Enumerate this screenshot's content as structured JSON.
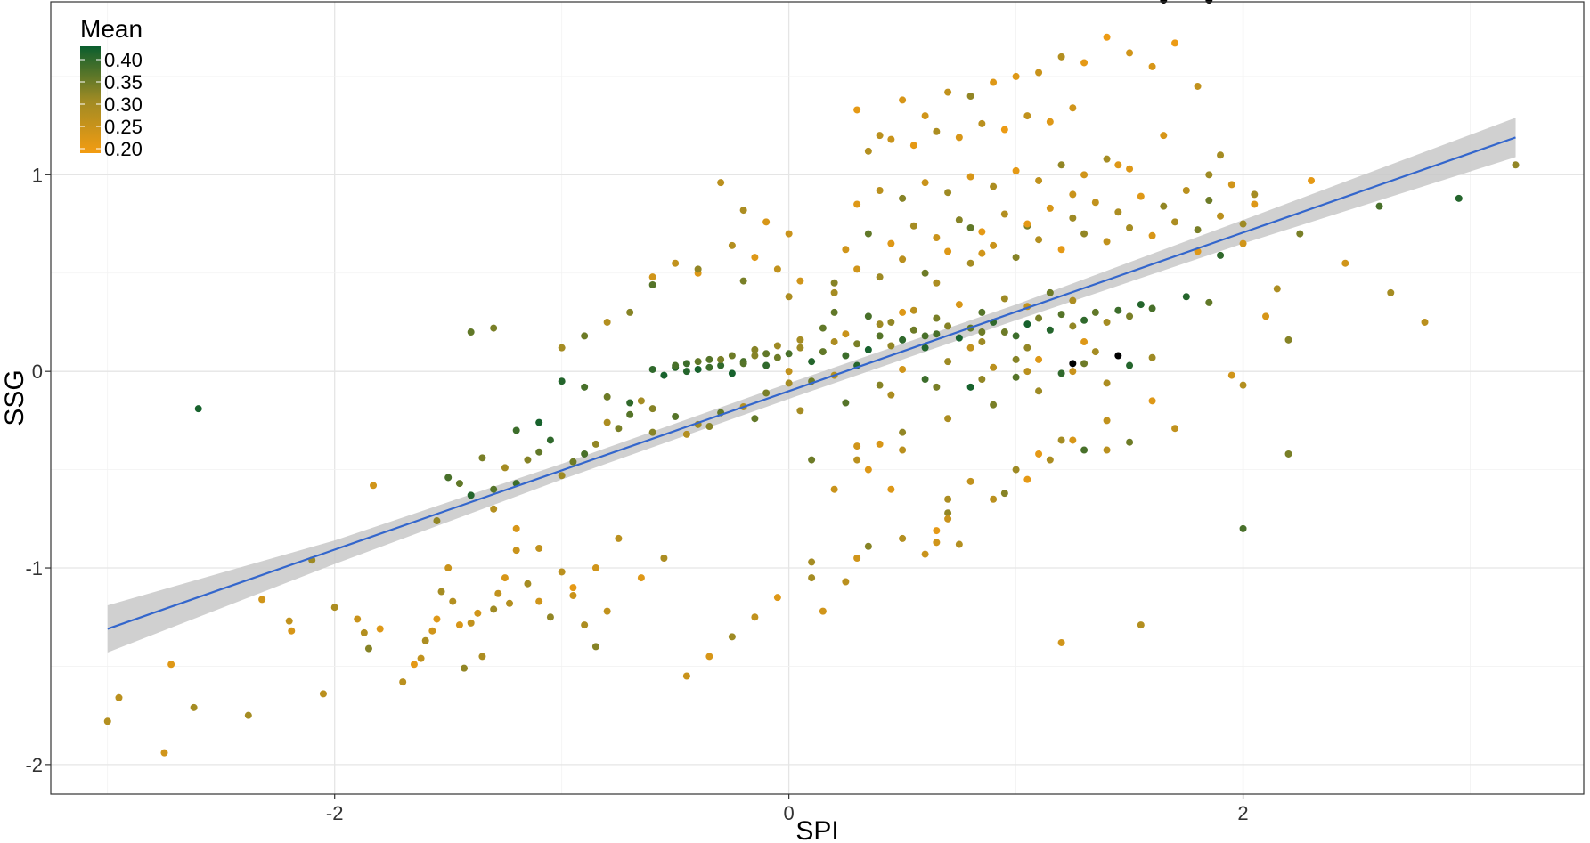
{
  "chart_data": {
    "type": "scatter",
    "xlabel": "SPI",
    "ylabel": "SSG",
    "xlim": [
      -3.25,
      3.5
    ],
    "ylim": [
      -2.15,
      1.88
    ],
    "xticks": [
      -2,
      0,
      2
    ],
    "xtick_labels": [
      "-2",
      "0",
      "2"
    ],
    "yticks": [
      -2,
      -1,
      0,
      1
    ],
    "ytick_labels": [
      "-2",
      "-1",
      "0",
      "1"
    ],
    "grid": true,
    "legend": {
      "title": "Mean",
      "placement": "top-left",
      "ticks": [
        0.4,
        0.35,
        0.3,
        0.25,
        0.2
      ],
      "tick_labels": [
        "0.40",
        "0.35",
        "0.30",
        "0.25",
        "0.20"
      ],
      "range": [
        0.19,
        0.43
      ],
      "colors": [
        "#F39C12",
        "#9E8A24",
        "#0B5E2E"
      ]
    },
    "regression": {
      "x": [
        -3.0,
        3.2
      ],
      "y": [
        -1.31,
        1.19
      ],
      "ci_x": [
        -3.0,
        -2.0,
        -1.0,
        0.0,
        1.0,
        2.0,
        3.2
      ],
      "ci_lower": [
        -1.43,
        -0.98,
        -0.55,
        -0.14,
        0.26,
        0.65,
        1.09
      ],
      "ci_upper": [
        -1.19,
        -0.86,
        -0.47,
        -0.06,
        0.34,
        0.77,
        1.29
      ],
      "line_color": "#3366CC",
      "band_color": "#C8C8C8"
    },
    "points_x": [
      -3.0,
      -2.95,
      -2.75,
      -2.72,
      -2.62,
      -2.6,
      -2.38,
      -2.32,
      -2.2,
      -2.19,
      -2.1,
      -2.05,
      -2.0,
      -1.9,
      -1.87,
      -1.85,
      -1.83,
      -1.8,
      -1.7,
      -1.65,
      -1.62,
      -1.6,
      -1.57,
      -1.55,
      -1.53,
      -1.5,
      -1.48,
      -1.45,
      -1.43,
      -1.4,
      -1.37,
      -1.35,
      -1.3,
      -1.28,
      -1.25,
      -1.23,
      -1.2,
      -1.15,
      -1.1,
      -1.05,
      -1.0,
      -0.95,
      -0.9,
      -0.85,
      -0.8,
      -1.55,
      -1.5,
      -1.45,
      -1.4,
      -1.35,
      -1.3,
      -1.25,
      -1.2,
      -1.15,
      -1.1,
      -1.05,
      -1.0,
      -0.95,
      -0.9,
      -0.85,
      -0.8,
      -0.75,
      -0.7,
      -0.65,
      -0.6,
      -1.4,
      -1.3,
      -1.2,
      -1.1,
      -1.0,
      -0.9,
      -0.8,
      -0.7,
      -0.6,
      -0.5,
      -0.4,
      -0.3,
      -0.2,
      -0.1,
      0.0,
      -0.5,
      -0.45,
      -0.4,
      -0.35,
      -0.3,
      -0.25,
      -0.2,
      -0.15,
      -0.1,
      -0.05,
      -0.6,
      -0.55,
      -0.5,
      -0.45,
      -0.4,
      -0.35,
      -0.3,
      -0.25,
      -0.2,
      -0.15,
      -0.1,
      -0.05,
      0.0,
      0.05,
      0.1,
      0.15,
      0.2,
      0.25,
      0.3,
      0.35,
      0.4,
      0.45,
      0.5,
      0.55,
      0.6,
      0.65,
      0.7,
      0.75,
      0.8,
      0.85,
      0.9,
      0.95,
      1.0,
      1.05,
      1.1,
      1.15,
      1.2,
      1.25,
      1.3,
      1.35,
      1.4,
      1.45,
      1.5,
      1.55,
      1.6,
      0.0,
      0.1,
      0.2,
      0.3,
      0.4,
      0.5,
      0.6,
      0.7,
      0.8,
      0.9,
      1.0,
      1.1,
      1.2,
      1.3,
      1.4,
      1.5,
      0.05,
      0.15,
      0.25,
      0.35,
      0.45,
      0.55,
      0.65,
      0.75,
      0.85,
      0.95,
      1.05,
      1.15,
      1.25,
      0.2,
      0.3,
      0.4,
      0.5,
      0.6,
      0.7,
      0.8,
      0.9,
      1.0,
      1.1,
      1.2,
      1.3,
      1.4,
      1.5,
      1.6,
      1.7,
      1.8,
      1.9,
      2.0,
      0.25,
      0.35,
      0.45,
      0.55,
      0.65,
      0.75,
      0.85,
      0.95,
      1.05,
      1.15,
      1.25,
      1.35,
      1.45,
      1.55,
      1.65,
      1.75,
      1.85,
      1.95,
      2.05,
      0.3,
      0.4,
      0.5,
      0.6,
      0.7,
      0.8,
      0.9,
      1.0,
      1.1,
      1.2,
      1.3,
      1.4,
      1.5,
      0.35,
      0.45,
      0.55,
      0.65,
      0.75,
      0.85,
      0.95,
      1.05,
      1.15,
      1.25,
      0.3,
      0.5,
      0.7,
      0.9,
      1.1,
      1.3,
      1.5,
      1.7,
      1.9,
      0.4,
      0.6,
      0.8,
      1.0,
      1.2,
      1.4,
      1.6,
      1.8,
      0.5,
      0.65,
      0.85,
      1.05,
      1.25,
      1.45,
      1.65,
      1.85,
      2.05,
      2.25,
      2.45,
      2.65,
      2.8,
      3.2,
      2.6,
      2.95,
      2.3,
      2.15,
      2.2,
      1.95,
      2.0,
      2.1,
      1.85,
      1.6,
      1.7,
      1.8,
      2.0,
      2.2,
      2.0,
      1.9,
      1.75,
      0.8,
      0.85,
      1.05,
      1.25,
      1.3,
      1.35,
      1.1,
      0.95,
      0.75,
      1.2,
      1.0,
      0.8,
      0.7,
      0.45,
      0.4,
      0.3,
      0.7,
      0.65,
      0.65,
      0.6,
      0.35,
      0.25,
      0.1,
      0.15,
      1.55,
      1.6,
      1.4,
      1.25,
      1.15,
      1.05,
      0.9,
      0.7,
      0.5,
      0.3,
      0.1,
      -0.05,
      -0.15,
      -0.25,
      -0.35,
      -0.45,
      -0.55,
      -0.65,
      -0.75,
      -0.85,
      -0.95,
      -1.1,
      -1.2,
      -1.3,
      0.2,
      0.35,
      0.5,
      0.2,
      0.05,
      -0.05,
      -0.15,
      -0.25,
      0.0,
      -0.1,
      -0.2,
      -0.3,
      -0.4,
      -0.5,
      -0.6,
      -0.7,
      -0.8,
      -0.9,
      -1.0,
      -0.6,
      -0.4,
      -0.2,
      0.0,
      0.2,
      0.4,
      0.6,
      0.8,
      1.0,
      1.2,
      1.4,
      0.1,
      0.3,
      0.5,
      0.7,
      0.9,
      1.1,
      1.3,
      1.5,
      -0.45,
      -0.35,
      -0.15,
      0.05,
      0.25,
      0.45,
      0.65,
      0.85,
      1.05,
      1.25,
      1.45,
      1.65,
      1.85
    ],
    "points_y": [
      -1.78,
      -1.66,
      -1.94,
      -1.49,
      -1.71,
      -0.19,
      -1.75,
      -1.16,
      -1.27,
      -1.32,
      -0.96,
      -1.64,
      -1.2,
      -1.26,
      -1.33,
      -1.41,
      -0.58,
      -1.31,
      -1.58,
      -1.49,
      -1.46,
      -1.37,
      -1.32,
      -1.26,
      -1.12,
      -1.0,
      -1.17,
      -1.29,
      -1.51,
      -1.28,
      -1.23,
      -1.45,
      -1.21,
      -1.13,
      -1.05,
      -1.18,
      -0.91,
      -1.08,
      -1.17,
      -1.25,
      -1.02,
      -1.14,
      -1.29,
      -1.4,
      -1.22,
      -0.76,
      -0.54,
      -0.57,
      -0.63,
      -0.44,
      -0.6,
      -0.49,
      -0.57,
      -0.45,
      -0.41,
      -0.35,
      -0.53,
      -0.46,
      -0.42,
      -0.37,
      -0.26,
      -0.29,
      -0.22,
      -0.15,
      -0.31,
      0.2,
      0.22,
      -0.3,
      -0.26,
      -0.05,
      -0.08,
      -0.13,
      -0.16,
      -0.19,
      -0.23,
      -0.27,
      -0.21,
      -0.18,
      -0.11,
      -0.06,
      0.02,
      0.04,
      0.01,
      0.06,
      0.03,
      0.08,
      0.05,
      0.11,
      0.09,
      0.13,
      0.01,
      -0.02,
      0.03,
      0.0,
      0.05,
      0.02,
      0.06,
      -0.01,
      0.04,
      0.08,
      0.03,
      0.07,
      0.09,
      0.12,
      0.05,
      0.1,
      0.15,
      0.08,
      0.14,
      0.11,
      0.18,
      0.13,
      0.16,
      0.21,
      0.12,
      0.19,
      0.23,
      0.17,
      0.22,
      0.15,
      0.25,
      0.2,
      0.18,
      0.24,
      0.27,
      0.21,
      0.29,
      0.23,
      0.26,
      0.3,
      0.25,
      0.31,
      0.28,
      0.34,
      0.32,
      0.0,
      -0.05,
      -0.02,
      0.03,
      -0.07,
      0.01,
      -0.04,
      0.05,
      -0.08,
      0.02,
      -0.03,
      0.06,
      -0.01,
      0.04,
      -0.06,
      0.03,
      0.16,
      0.22,
      0.19,
      0.28,
      0.25,
      0.31,
      0.27,
      0.34,
      0.3,
      0.37,
      0.33,
      0.4,
      0.36,
      0.45,
      0.52,
      0.48,
      0.57,
      0.5,
      0.61,
      0.55,
      0.64,
      0.58,
      0.67,
      0.62,
      0.7,
      0.66,
      0.73,
      0.69,
      0.76,
      0.72,
      0.79,
      0.75,
      0.62,
      0.7,
      0.65,
      0.74,
      0.68,
      0.77,
      0.71,
      0.8,
      0.74,
      0.83,
      0.78,
      0.86,
      0.81,
      0.89,
      0.84,
      0.92,
      0.87,
      0.95,
      0.9,
      0.85,
      0.92,
      0.88,
      0.96,
      0.91,
      0.99,
      0.94,
      1.02,
      0.97,
      1.05,
      1.0,
      1.08,
      1.03,
      1.12,
      1.18,
      1.15,
      1.22,
      1.19,
      1.26,
      1.23,
      1.3,
      1.27,
      1.34,
      1.33,
      1.38,
      1.42,
      1.47,
      1.52,
      1.57,
      1.62,
      1.67,
      1.1,
      1.2,
      1.3,
      1.4,
      1.5,
      1.6,
      1.7,
      1.55,
      1.45,
      0.3,
      0.45,
      0.6,
      0.75,
      0.9,
      1.05,
      1.2,
      1.0,
      0.85,
      0.7,
      0.55,
      0.4,
      0.25,
      1.05,
      0.84,
      0.88,
      0.97,
      0.42,
      0.16,
      -0.02,
      -0.07,
      0.28,
      0.35,
      0.07,
      -0.29,
      0.61,
      0.65,
      -0.42,
      -0.8,
      0.59,
      0.38,
      0.73,
      0.2,
      0.12,
      0.0,
      0.15,
      0.1,
      -0.42,
      -0.62,
      -0.88,
      -1.38,
      -0.5,
      -0.56,
      -0.72,
      -0.6,
      -0.37,
      -0.45,
      -0.65,
      -0.81,
      -0.87,
      -0.93,
      -0.89,
      -1.07,
      -0.97,
      -1.22,
      -1.29,
      -0.15,
      -0.25,
      -0.35,
      -0.45,
      -0.55,
      -0.65,
      -0.75,
      -0.85,
      -0.95,
      -1.05,
      -1.15,
      -1.25,
      -1.35,
      -1.45,
      -1.55,
      -0.95,
      -1.05,
      -0.85,
      -1.0,
      -1.1,
      -0.9,
      -0.8,
      -0.7,
      -0.6,
      -0.5,
      -0.4,
      0.4,
      0.46,
      0.52,
      0.58,
      0.64,
      0.7,
      0.76,
      0.82,
      0.96,
      0.5,
      0.55,
      0.48,
      0.3,
      0.25,
      0.18,
      0.12,
      0.44,
      0.52,
      0.46,
      0.38,
      0.3,
      0.24,
      0.18,
      0.12,
      0.06,
      -0.35,
      -0.4,
      -0.45,
      -0.38,
      -0.31,
      -0.24,
      -0.17,
      -0.1,
      -0.4,
      -0.36,
      -0.32,
      -0.28,
      -0.24,
      -0.2,
      -0.16,
      -0.12,
      -0.08,
      -0.04,
      0.0,
      0.04,
      0.08
    ],
    "points_mean": [
      0.28,
      0.27,
      0.24,
      0.22,
      0.3,
      0.42,
      0.3,
      0.24,
      0.26,
      0.23,
      0.31,
      0.27,
      0.29,
      0.25,
      0.28,
      0.33,
      0.24,
      0.22,
      0.27,
      0.21,
      0.26,
      0.29,
      0.24,
      0.22,
      0.3,
      0.25,
      0.28,
      0.23,
      0.32,
      0.26,
      0.24,
      0.29,
      0.31,
      0.26,
      0.23,
      0.28,
      0.25,
      0.3,
      0.24,
      0.32,
      0.27,
      0.25,
      0.29,
      0.33,
      0.26,
      0.32,
      0.38,
      0.36,
      0.41,
      0.34,
      0.37,
      0.3,
      0.39,
      0.33,
      0.36,
      0.4,
      0.31,
      0.35,
      0.38,
      0.32,
      0.29,
      0.34,
      0.37,
      0.3,
      0.33,
      0.36,
      0.34,
      0.39,
      0.42,
      0.41,
      0.38,
      0.35,
      0.4,
      0.33,
      0.37,
      0.31,
      0.36,
      0.28,
      0.34,
      0.3,
      0.41,
      0.39,
      0.42,
      0.37,
      0.4,
      0.35,
      0.38,
      0.33,
      0.36,
      0.31,
      0.4,
      0.42,
      0.38,
      0.41,
      0.36,
      0.39,
      0.34,
      0.42,
      0.37,
      0.33,
      0.4,
      0.35,
      0.38,
      0.31,
      0.41,
      0.36,
      0.29,
      0.39,
      0.34,
      0.42,
      0.37,
      0.32,
      0.4,
      0.35,
      0.41,
      0.38,
      0.33,
      0.42,
      0.36,
      0.31,
      0.4,
      0.35,
      0.39,
      0.42,
      0.34,
      0.41,
      0.37,
      0.32,
      0.4,
      0.36,
      0.3,
      0.39,
      0.34,
      0.41,
      0.38,
      0.26,
      0.35,
      0.28,
      0.41,
      0.33,
      0.24,
      0.39,
      0.31,
      0.42,
      0.27,
      0.37,
      0.22,
      0.4,
      0.35,
      0.29,
      0.41,
      0.3,
      0.36,
      0.25,
      0.38,
      0.32,
      0.27,
      0.34,
      0.23,
      0.37,
      0.31,
      0.26,
      0.35,
      0.29,
      0.33,
      0.24,
      0.31,
      0.27,
      0.35,
      0.22,
      0.3,
      0.25,
      0.33,
      0.28,
      0.21,
      0.32,
      0.26,
      0.3,
      0.23,
      0.29,
      0.34,
      0.27,
      0.31,
      0.24,
      0.36,
      0.22,
      0.3,
      0.25,
      0.33,
      0.21,
      0.28,
      0.34,
      0.23,
      0.31,
      0.26,
      0.29,
      0.22,
      0.32,
      0.27,
      0.35,
      0.24,
      0.3,
      0.22,
      0.27,
      0.33,
      0.25,
      0.31,
      0.23,
      0.29,
      0.21,
      0.26,
      0.32,
      0.24,
      0.3,
      0.22,
      0.28,
      0.25,
      0.21,
      0.29,
      0.23,
      0.27,
      0.2,
      0.26,
      0.22,
      0.24,
      0.21,
      0.23,
      0.26,
      0.22,
      0.25,
      0.21,
      0.24,
      0.2,
      0.3,
      0.27,
      0.24,
      0.32,
      0.22,
      0.28,
      0.2,
      0.23,
      0.26,
      0.22,
      0.29,
      0.24,
      0.21,
      0.25,
      0.22,
      0.23,
      0.31,
      0.22,
      0.34,
      0.24,
      0.3,
      0.27,
      0.32,
      0.38,
      0.41,
      0.21,
      0.29,
      0.33,
      0.24,
      0.28,
      0.23,
      0.36,
      0.31,
      0.26,
      0.22,
      0.24,
      0.34,
      0.38,
      0.4,
      0.41,
      0.36,
      0.35,
      0.32,
      0.25,
      0.22,
      0.3,
      0.21,
      0.33,
      0.28,
      0.24,
      0.31,
      0.26,
      0.32,
      0.22,
      0.23,
      0.27,
      0.29,
      0.21,
      0.24,
      0.25,
      0.33,
      0.27,
      0.3,
      0.24,
      0.28,
      0.22,
      0.26,
      0.23,
      0.29,
      0.21,
      0.27,
      0.25,
      0.28,
      0.24,
      0.3,
      0.22,
      0.26,
      0.31,
      0.23,
      0.25,
      0.29,
      0.22,
      0.27,
      0.24,
      0.21,
      0.26,
      0.23,
      0.28,
      0.25,
      0.22,
      0.27,
      0.3,
      0.24,
      0.26,
      0.22,
      0.28,
      0.25,
      0.23,
      0.29,
      0.27,
      0.22,
      0.26,
      0.24,
      0.33,
      0.28,
      0.35,
      0.3,
      0.37,
      0.32,
      0.34,
      0.29,
      0.36,
      0.31,
      0.38,
      0.26,
      0.33,
      0.3,
      0.27,
      0.35,
      0.24,
      0.32,
      0.29,
      0.34,
      0.31,
      0.38,
      0.35,
      0.28,
      0.33,
      0.36,
      0.3,
      0.37,
      0.29,
      0.34,
      0.32,
      0.27
    ]
  }
}
